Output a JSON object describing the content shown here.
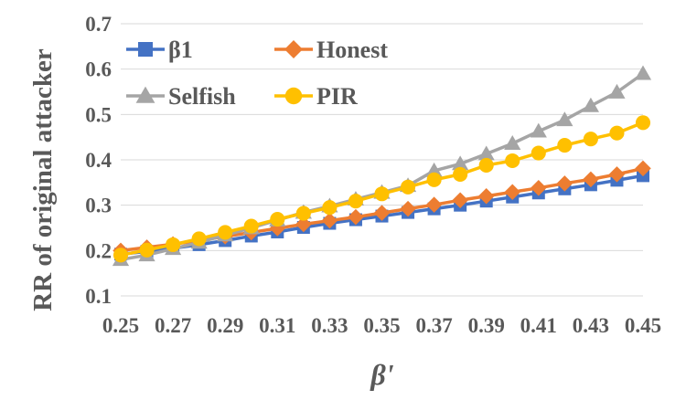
{
  "chart_data": {
    "type": "line",
    "title": "",
    "xlabel": "β'",
    "ylabel": "RR of original attacker",
    "xlim": [
      0.25,
      0.45
    ],
    "ylim": [
      0.1,
      0.7
    ],
    "y_ticks": [
      "0.1",
      "0.2",
      "0.3",
      "0.4",
      "0.5",
      "0.6",
      "0.7"
    ],
    "x_ticks": [
      "0.25",
      "0.27",
      "0.29",
      "0.31",
      "0.33",
      "0.35",
      "0.37",
      "0.39",
      "0.41",
      "0.43",
      "0.45"
    ],
    "grid": "horizontal",
    "legend_position": "top-left",
    "x": [
      0.25,
      0.26,
      0.27,
      0.28,
      0.29,
      0.3,
      0.31,
      0.32,
      0.33,
      0.34,
      0.35,
      0.36,
      0.37,
      0.38,
      0.39,
      0.4,
      0.41,
      0.42,
      0.43,
      0.44,
      0.45
    ],
    "series": [
      {
        "name": "β1",
        "color": "#4472C4",
        "marker": "square",
        "values": [
          0.192,
          0.198,
          0.205,
          0.213,
          0.222,
          0.232,
          0.241,
          0.251,
          0.26,
          0.268,
          0.276,
          0.284,
          0.292,
          0.3,
          0.309,
          0.318,
          0.327,
          0.336,
          0.345,
          0.355,
          0.365
        ]
      },
      {
        "name": "Honest",
        "color": "#ED7D31",
        "marker": "diamond",
        "values": [
          0.2,
          0.207,
          0.214,
          0.222,
          0.231,
          0.24,
          0.249,
          0.258,
          0.266,
          0.274,
          0.283,
          0.292,
          0.301,
          0.311,
          0.32,
          0.329,
          0.338,
          0.348,
          0.357,
          0.368,
          0.381
        ]
      },
      {
        "name": "Selfish",
        "color": "#A5A5A5",
        "marker": "triangle",
        "values": [
          0.18,
          0.19,
          0.204,
          0.218,
          0.234,
          0.25,
          0.267,
          0.284,
          0.298,
          0.313,
          0.328,
          0.343,
          0.376,
          0.391,
          0.413,
          0.436,
          0.463,
          0.488,
          0.519,
          0.549,
          0.59
        ]
      },
      {
        "name": "PIR",
        "color": "#FFC000",
        "marker": "circle",
        "values": [
          0.19,
          0.201,
          0.213,
          0.226,
          0.24,
          0.254,
          0.269,
          0.282,
          0.295,
          0.309,
          0.325,
          0.34,
          0.356,
          0.368,
          0.388,
          0.398,
          0.415,
          0.432,
          0.446,
          0.459,
          0.482
        ]
      }
    ]
  }
}
